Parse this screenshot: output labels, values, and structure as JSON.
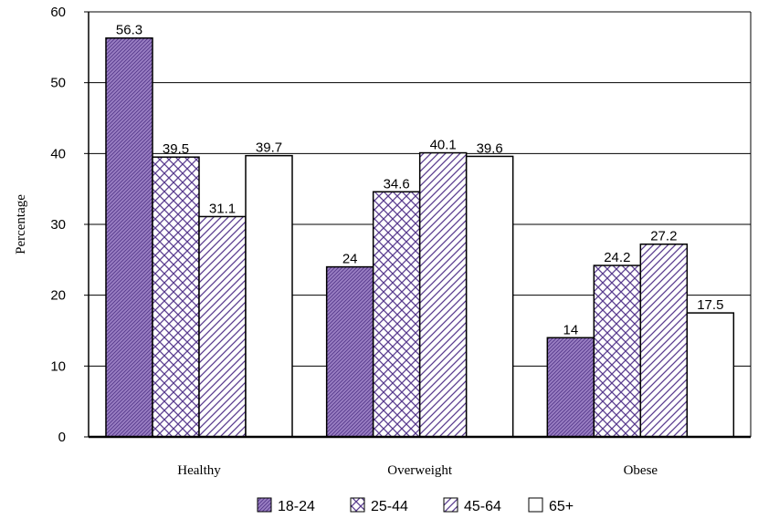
{
  "chart_data": {
    "type": "bar",
    "title": "",
    "xlabel": "",
    "ylabel": "Percentage",
    "ylim": [
      0,
      60
    ],
    "yticks": [
      0,
      10,
      20,
      30,
      40,
      50,
      60
    ],
    "grid": true,
    "legend_position": "bottom",
    "categories": [
      "Healthy",
      "Overweight",
      "Obese"
    ],
    "series": [
      {
        "name": "18-24",
        "values": [
          56.3,
          24,
          14
        ],
        "labels": [
          "56.3",
          "24",
          "14"
        ],
        "fill": "#9b80c4",
        "pattern": "dense-diagonal"
      },
      {
        "name": "25-44",
        "values": [
          39.5,
          34.6,
          24.2
        ],
        "labels": [
          "39.5",
          "34.6",
          "24.2"
        ],
        "fill": "#ffffff",
        "pattern": "crosshatch"
      },
      {
        "name": "45-64",
        "values": [
          31.1,
          40.1,
          27.2
        ],
        "labels": [
          "31.1",
          "40.1",
          "27.2"
        ],
        "fill": "#ffffff",
        "pattern": "diagonal"
      },
      {
        "name": "65+",
        "values": [
          39.7,
          39.6,
          17.5
        ],
        "labels": [
          "39.7",
          "39.6",
          "17.5"
        ],
        "fill": "#ffffff",
        "pattern": "none"
      }
    ],
    "colors": {
      "pattern_stroke": "#5a3d8f",
      "axis": "#000000",
      "grid": "#000000"
    }
  }
}
